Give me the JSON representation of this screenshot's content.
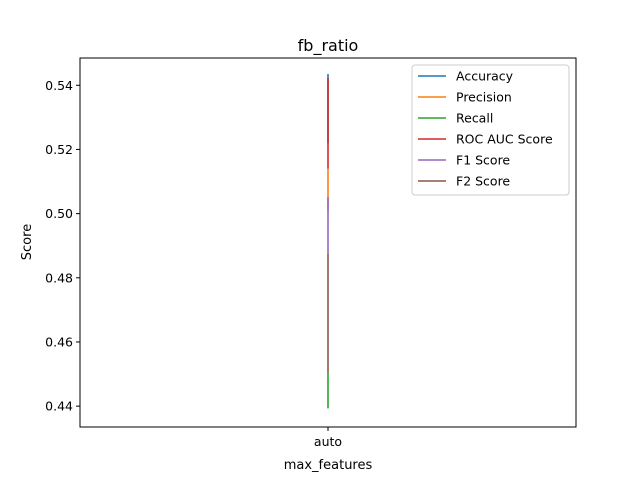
{
  "chart_data": {
    "type": "line",
    "title": "fb_ratio",
    "xlabel": "max_features",
    "ylabel": "Score",
    "categories": [
      "auto"
    ],
    "ylim": [
      0.4335,
      0.5485
    ],
    "yticks": [
      0.44,
      0.46,
      0.48,
      0.5,
      0.52,
      0.54
    ],
    "ytick_labels": [
      "0.44",
      "0.46",
      "0.48",
      "0.50",
      "0.52",
      "0.54"
    ],
    "legend_position": "top-right",
    "grid": false,
    "series": [
      {
        "name": "Accuracy",
        "color": "#1f77b4",
        "low": 0.522,
        "high": 0.5435
      },
      {
        "name": "Precision",
        "color": "#ff7f0e",
        "low": 0.501,
        "high": 0.514
      },
      {
        "name": "Recall",
        "color": "#2ca02c",
        "low": 0.4393,
        "high": 0.4505
      },
      {
        "name": "ROC AUC Score",
        "color": "#d62728",
        "low": 0.514,
        "high": 0.5422
      },
      {
        "name": "F1 Score",
        "color": "#9467bd",
        "low": 0.4875,
        "high": 0.5052
      },
      {
        "name": "F2 Score",
        "color": "#8c564b",
        "low": 0.4505,
        "high": 0.4875
      }
    ]
  }
}
